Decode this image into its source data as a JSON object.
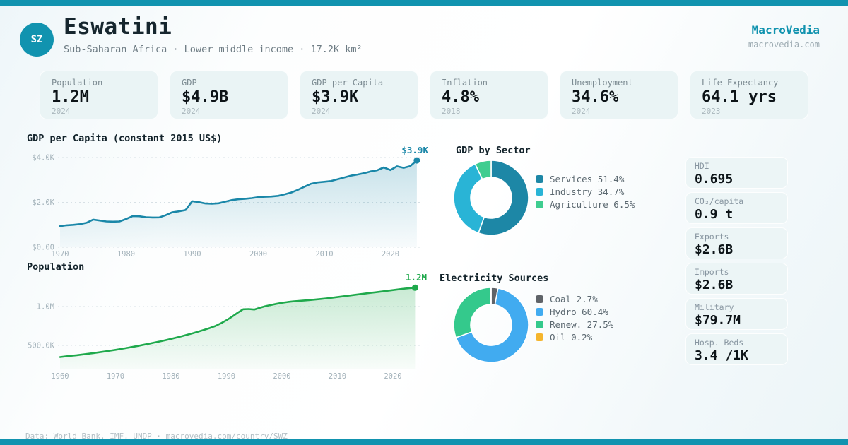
{
  "brand": {
    "name": "MacroVedia",
    "domain": "macrovedia.com",
    "accent": "#1193af"
  },
  "header": {
    "iso": "SZ",
    "country": "Eswatini",
    "subtitle": "Sub-Saharan Africa · Lower middle income · 17.2K km²"
  },
  "stats": [
    {
      "label": "Population",
      "value": "1.2M",
      "year": "2024"
    },
    {
      "label": "GDP",
      "value": "$4.9B",
      "year": "2024"
    },
    {
      "label": "GDP per Capita",
      "value": "$3.9K",
      "year": "2024"
    },
    {
      "label": "Inflation",
      "value": "4.8%",
      "year": "2018"
    },
    {
      "label": "Unemployment",
      "value": "34.6%",
      "year": "2024"
    },
    {
      "label": "Life Expectancy",
      "value": "64.1 yrs",
      "year": "2023"
    }
  ],
  "metrics": [
    {
      "label": "HDI",
      "value": "0.695"
    },
    {
      "label": "CO₂/capita",
      "value": "0.9 t"
    },
    {
      "label": "Exports",
      "value": "$2.6B"
    },
    {
      "label": "Imports",
      "value": "$2.6B"
    },
    {
      "label": "Military",
      "value": "$79.7M"
    },
    {
      "label": "Hosp. Beds",
      "value": "3.4 /1K"
    }
  ],
  "footer": {
    "text": "Data: World Bank, IMF, UNDP · macrovedia.com/country/SWZ"
  },
  "chart_data": [
    {
      "id": "gdp_per_capita",
      "type": "area",
      "title": "GDP per Capita (constant 2015 US$)",
      "color": "#1a87a8",
      "end_label": "$3.9K",
      "ylim": [
        0,
        4300
      ],
      "xticks": [
        1970,
        1980,
        1990,
        2000,
        2010,
        2020
      ],
      "yticks": [
        {
          "value": 4000,
          "label": "$4.0K"
        },
        {
          "value": 2000,
          "label": "$2.0K"
        },
        {
          "value": 0,
          "label": "$0.00"
        }
      ],
      "x": [
        1970,
        1971,
        1972,
        1973,
        1974,
        1975,
        1976,
        1977,
        1978,
        1979,
        1980,
        1981,
        1982,
        1983,
        1984,
        1985,
        1986,
        1987,
        1988,
        1989,
        1990,
        1991,
        1992,
        1993,
        1994,
        1995,
        1996,
        1997,
        1998,
        1999,
        2000,
        2001,
        2002,
        2003,
        2004,
        2005,
        2006,
        2007,
        2008,
        2009,
        2010,
        2011,
        2012,
        2013,
        2014,
        2015,
        2016,
        2017,
        2018,
        2019,
        2020,
        2021,
        2022,
        2023,
        2024
      ],
      "y": [
        940,
        980,
        1000,
        1030,
        1090,
        1230,
        1190,
        1150,
        1140,
        1150,
        1260,
        1390,
        1380,
        1340,
        1325,
        1330,
        1430,
        1560,
        1600,
        1660,
        2050,
        2010,
        1950,
        1940,
        1960,
        2030,
        2100,
        2140,
        2160,
        2190,
        2230,
        2250,
        2260,
        2290,
        2360,
        2440,
        2560,
        2700,
        2830,
        2890,
        2920,
        2950,
        3030,
        3110,
        3190,
        3240,
        3300,
        3380,
        3430,
        3560,
        3440,
        3610,
        3540,
        3620,
        3870
      ]
    },
    {
      "id": "population",
      "type": "area",
      "title": "Population",
      "color": "#1fa94c",
      "end_label": "1.2M",
      "ylim": [
        0,
        1300
      ],
      "unit": "thousands",
      "xticks": [
        1960,
        1970,
        1980,
        1990,
        2000,
        2010,
        2020
      ],
      "yticks": [
        {
          "value": 1000,
          "label": "1.0M"
        },
        {
          "value": 500,
          "label": "500.0K"
        }
      ],
      "x": [
        1960,
        1961,
        1962,
        1963,
        1964,
        1965,
        1966,
        1967,
        1968,
        1969,
        1970,
        1971,
        1972,
        1973,
        1974,
        1975,
        1976,
        1977,
        1978,
        1979,
        1980,
        1981,
        1982,
        1983,
        1984,
        1985,
        1986,
        1987,
        1988,
        1989,
        1990,
        1991,
        1992,
        1993,
        1994,
        1995,
        1996,
        1997,
        1998,
        1999,
        2000,
        2001,
        2002,
        2003,
        2004,
        2005,
        2006,
        2007,
        2008,
        2009,
        2010,
        2011,
        2012,
        2013,
        2014,
        2015,
        2016,
        2017,
        2018,
        2019,
        2020,
        2021,
        2022,
        2023,
        2024
      ],
      "y": [
        350,
        358,
        366,
        374,
        383,
        392,
        401,
        411,
        421,
        432,
        443,
        455,
        467,
        480,
        493,
        507,
        521,
        536,
        551,
        567,
        584,
        601,
        619,
        638,
        658,
        679,
        701,
        724,
        750,
        785,
        825,
        870,
        920,
        965,
        968,
        962,
        985,
        1005,
        1020,
        1035,
        1048,
        1058,
        1066,
        1072,
        1078,
        1084,
        1090,
        1097,
        1105,
        1113,
        1122,
        1131,
        1140,
        1149,
        1158,
        1167,
        1176,
        1185,
        1194,
        1203,
        1212,
        1221,
        1230,
        1237,
        1243
      ]
    },
    {
      "id": "gdp_by_sector",
      "type": "pie",
      "title": "GDP by Sector",
      "segments": [
        {
          "label": "Services",
          "pct": 51.4,
          "color": "#1d87a6"
        },
        {
          "label": "Industry",
          "pct": 34.7,
          "color": "#29b4d6"
        },
        {
          "label": "Agriculture",
          "pct": 6.5,
          "color": "#3fcd90"
        }
      ]
    },
    {
      "id": "electricity_sources",
      "type": "pie",
      "title": "Electricity Sources",
      "segments": [
        {
          "label": "Coal",
          "pct": 2.7,
          "color": "#5f6368"
        },
        {
          "label": "Hydro",
          "pct": 60.4,
          "color": "#41abf0"
        },
        {
          "label": "Renew.",
          "pct": 27.5,
          "color": "#34c98c"
        },
        {
          "label": "Oil",
          "pct": 0.2,
          "color": "#f5b52d"
        }
      ]
    }
  ]
}
